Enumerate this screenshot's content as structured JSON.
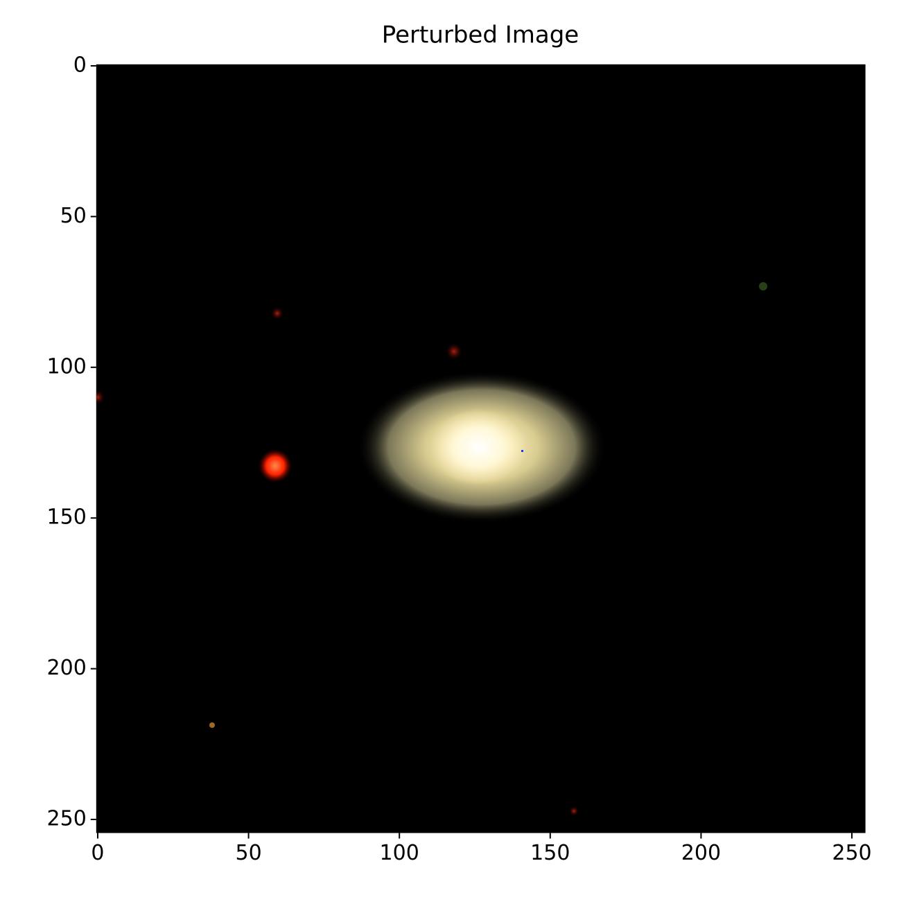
{
  "chart_data": {
    "type": "image",
    "title": "Perturbed Image",
    "xlim": [
      -0.5,
      254.5
    ],
    "ylim": [
      254.5,
      -0.5
    ],
    "xticks": [
      0,
      50,
      100,
      150,
      200,
      250
    ],
    "yticks": [
      0,
      50,
      100,
      150,
      200,
      250
    ]
  }
}
